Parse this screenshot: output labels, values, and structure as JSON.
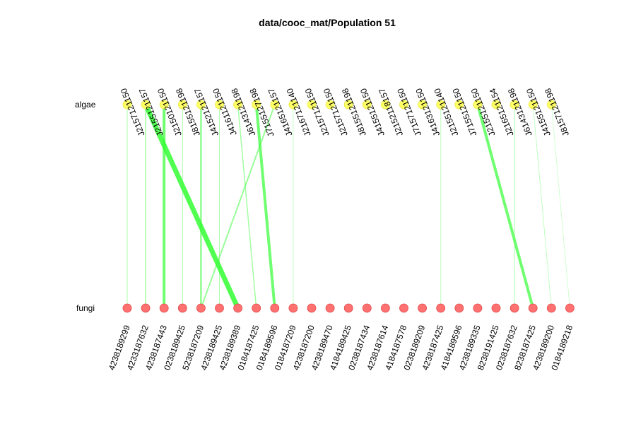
{
  "chart_data": {
    "type": "bipartite-network",
    "title": "data/cooc_mat/Population 51",
    "rows": [
      {
        "name": "algae",
        "color": "#ffff66",
        "stroke": "#e8e840"
      },
      {
        "name": "fungi",
        "color": "#ff7070",
        "stroke": "#e04848"
      }
    ],
    "top_labels": [
      "J2157121150",
      "J2155121157",
      "J2150121150",
      "J8155121198",
      "J4152121157",
      "J4161121150",
      "J6143121198",
      "J7155127198",
      "J4165121157",
      "J2167121140",
      "J2157121150",
      "J2157121150",
      "J8155121198",
      "J4155121150",
      "J2152118157",
      "J7157121150",
      "J4163121150",
      "J2155121140",
      "J7155121150",
      "J2155121150",
      "J2165121154",
      "J6143121198",
      "J4155121150",
      "J8157121198"
    ],
    "bottom_labels": [
      "4238189299",
      "4233187632",
      "4238187443",
      "0238189425",
      "5238187209",
      "4238189425",
      "4238189389",
      "0184187425",
      "0184189596",
      "0184187209",
      "4238187200",
      "4238189470",
      "4184189425",
      "0238187434",
      "4238187614",
      "4184187578",
      "0238189209",
      "4238187425",
      "4184189596",
      "4238189335",
      "8238191425",
      "0238187632",
      "8238187425",
      "4238189200",
      "0184189218"
    ],
    "edge_color": "#33ff33",
    "edges": [
      {
        "top": 0,
        "bottom": 0,
        "weight": 1
      },
      {
        "top": 1,
        "bottom": 1,
        "weight": 1.5
      },
      {
        "top": 1,
        "bottom": 6,
        "weight": 7
      },
      {
        "top": 2,
        "bottom": 2,
        "weight": 4
      },
      {
        "top": 3,
        "bottom": 3,
        "weight": 1
      },
      {
        "top": 4,
        "bottom": 4,
        "weight": 2.5
      },
      {
        "top": 5,
        "bottom": 5,
        "weight": 1
      },
      {
        "top": 6,
        "bottom": 7,
        "weight": 1.5
      },
      {
        "top": 7,
        "bottom": 8,
        "weight": 4
      },
      {
        "top": 8,
        "bottom": 4,
        "weight": 2
      },
      {
        "top": 9,
        "bottom": 9,
        "weight": 0.8
      },
      {
        "top": 17,
        "bottom": 17,
        "weight": 0.8
      },
      {
        "top": 19,
        "bottom": 22,
        "weight": 4
      },
      {
        "top": 21,
        "bottom": 21,
        "weight": 1
      },
      {
        "top": 22,
        "bottom": 23,
        "weight": 0.8
      },
      {
        "top": 23,
        "bottom": 24,
        "weight": 0.6
      }
    ]
  }
}
